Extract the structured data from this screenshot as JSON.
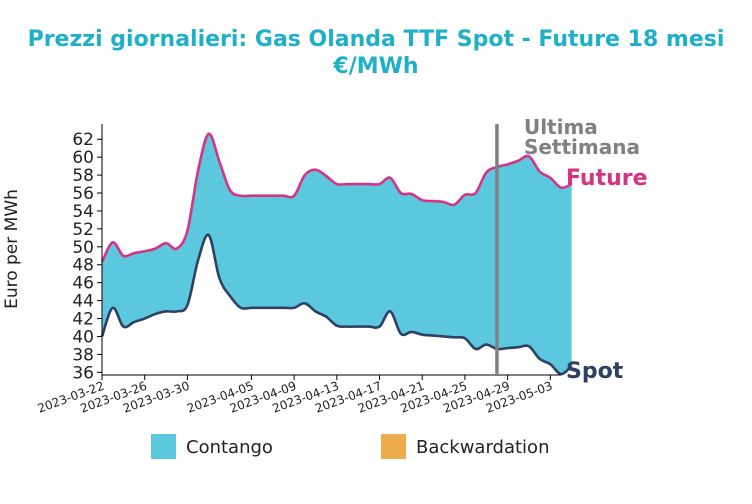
{
  "chart_data": {
    "type": "area",
    "title_line1": "Prezzi giornalieri: Gas Olanda TTF Spot - Future 18 mesi",
    "title_line2": "€/MWh",
    "xlabel": "",
    "ylabel": "Euro per MWh",
    "ylim": [
      35.7,
      63.7
    ],
    "y_ticks": [
      36,
      38,
      40,
      42,
      44,
      46,
      48,
      50,
      52,
      54,
      56,
      58,
      60,
      62
    ],
    "x_range": [
      "2023-03-22",
      "2023-05-04"
    ],
    "x_ticks": [
      "2023-03-22",
      "2023-03-26",
      "2023-03-30",
      "2023-04-05",
      "2023-04-09",
      "2023-04-13",
      "2023-04-17",
      "2023-04-21",
      "2023-04-25",
      "2023-04-29",
      "2023-05-03"
    ],
    "series": [
      {
        "name": "Future",
        "color": "#d63384",
        "points": [
          [
            "2023-03-22",
            48.3
          ],
          [
            "2023-03-23",
            50.5
          ],
          [
            "2023-03-24",
            49.0
          ],
          [
            "2023-03-25",
            49.3
          ],
          [
            "2023-03-26",
            49.5
          ],
          [
            "2023-03-27",
            49.8
          ],
          [
            "2023-03-28",
            50.4
          ],
          [
            "2023-03-29",
            49.8
          ],
          [
            "2023-03-30",
            51.8
          ],
          [
            "2023-03-31",
            58.5
          ],
          [
            "2023-04-01",
            62.6
          ],
          [
            "2023-04-02",
            59.5
          ],
          [
            "2023-04-03",
            56.3
          ],
          [
            "2023-04-04",
            55.7
          ],
          [
            "2023-04-05",
            55.7
          ],
          [
            "2023-04-06",
            55.7
          ],
          [
            "2023-04-07",
            55.7
          ],
          [
            "2023-04-08",
            55.7
          ],
          [
            "2023-04-09",
            55.7
          ],
          [
            "2023-04-10",
            58.0
          ],
          [
            "2023-04-11",
            58.6
          ],
          [
            "2023-04-12",
            57.9
          ],
          [
            "2023-04-13",
            57.0
          ],
          [
            "2023-04-14",
            57.0
          ],
          [
            "2023-04-15",
            57.0
          ],
          [
            "2023-04-16",
            57.0
          ],
          [
            "2023-04-17",
            57.0
          ],
          [
            "2023-04-18",
            57.7
          ],
          [
            "2023-04-19",
            56.0
          ],
          [
            "2023-04-20",
            55.9
          ],
          [
            "2023-04-21",
            55.2
          ],
          [
            "2023-04-22",
            55.1
          ],
          [
            "2023-04-23",
            55.0
          ],
          [
            "2023-04-24",
            54.7
          ],
          [
            "2023-04-25",
            55.8
          ],
          [
            "2023-04-26",
            56.0
          ],
          [
            "2023-04-27",
            58.3
          ],
          [
            "2023-04-28",
            58.9
          ],
          [
            "2023-04-29",
            59.2
          ],
          [
            "2023-04-30",
            59.6
          ],
          [
            "2023-05-01",
            60.1
          ],
          [
            "2023-05-02",
            58.4
          ],
          [
            "2023-05-03",
            57.7
          ],
          [
            "2023-05-04",
            56.6
          ],
          [
            "2023-05-05",
            57.0
          ]
        ]
      },
      {
        "name": "Spot",
        "color": "#2e4063",
        "points": [
          [
            "2023-03-22",
            40.0
          ],
          [
            "2023-03-23",
            43.2
          ],
          [
            "2023-03-24",
            41.1
          ],
          [
            "2023-03-25",
            41.6
          ],
          [
            "2023-03-26",
            42.0
          ],
          [
            "2023-03-27",
            42.5
          ],
          [
            "2023-03-28",
            42.8
          ],
          [
            "2023-03-29",
            42.8
          ],
          [
            "2023-03-30",
            43.5
          ],
          [
            "2023-03-31",
            48.5
          ],
          [
            "2023-04-01",
            51.3
          ],
          [
            "2023-04-02",
            46.5
          ],
          [
            "2023-04-03",
            44.5
          ],
          [
            "2023-04-04",
            43.2
          ],
          [
            "2023-04-05",
            43.2
          ],
          [
            "2023-04-06",
            43.2
          ],
          [
            "2023-04-07",
            43.2
          ],
          [
            "2023-04-08",
            43.2
          ],
          [
            "2023-04-09",
            43.2
          ],
          [
            "2023-04-10",
            43.7
          ],
          [
            "2023-04-11",
            42.8
          ],
          [
            "2023-04-12",
            42.2
          ],
          [
            "2023-04-13",
            41.2
          ],
          [
            "2023-04-14",
            41.1
          ],
          [
            "2023-04-15",
            41.1
          ],
          [
            "2023-04-16",
            41.1
          ],
          [
            "2023-04-17",
            41.1
          ],
          [
            "2023-04-18",
            42.8
          ],
          [
            "2023-04-19",
            40.3
          ],
          [
            "2023-04-20",
            40.5
          ],
          [
            "2023-04-21",
            40.2
          ],
          [
            "2023-04-22",
            40.1
          ],
          [
            "2023-04-23",
            40.0
          ],
          [
            "2023-04-24",
            39.9
          ],
          [
            "2023-04-25",
            39.8
          ],
          [
            "2023-04-26",
            38.6
          ],
          [
            "2023-04-27",
            39.1
          ],
          [
            "2023-04-28",
            38.6
          ],
          [
            "2023-04-29",
            38.7
          ],
          [
            "2023-04-30",
            38.8
          ],
          [
            "2023-05-01",
            38.9
          ],
          [
            "2023-05-02",
            37.5
          ],
          [
            "2023-05-03",
            36.9
          ],
          [
            "2023-05-04",
            35.8
          ],
          [
            "2023-05-05",
            36.7
          ]
        ]
      }
    ],
    "marker": {
      "date": "2023-04-28",
      "label_line1": "Ultima",
      "label_line2": "Settimana",
      "color": "#808080"
    },
    "legend": [
      {
        "label": "Contango",
        "color": "#5bc8de"
      },
      {
        "label": "Backwardation",
        "color": "#eeab4e"
      }
    ],
    "legend_position": "bottom-center",
    "grid": false,
    "colors": {
      "title": "#1eb0c8",
      "text": "#222222",
      "contango": "#5bc8de",
      "backwardation": "#eeab4e"
    }
  }
}
